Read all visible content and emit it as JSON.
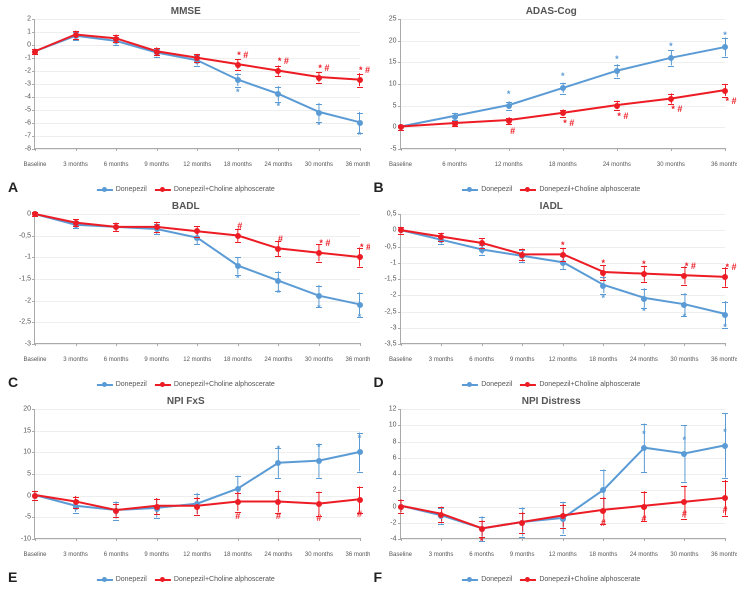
{
  "global": {
    "colors": {
      "donepezil": "#5B9BD5",
      "combo": "#ED1C24",
      "grid": "#eeeeee",
      "axis": "#aaaaaa",
      "text": "#555555",
      "bg": "#ffffff"
    },
    "legend": {
      "series1": "Donepezil",
      "series2": "Donepezil+Choline alphoscerate"
    },
    "line_width": 2,
    "marker_radius": 3,
    "errorbar_cap": 3
  },
  "panels": [
    {
      "letter": "A",
      "title": "MMSE",
      "ylim": [
        -8,
        2
      ],
      "yticks": [
        -8,
        -7,
        -6,
        -5,
        -4,
        -3,
        -2,
        -1,
        0,
        1,
        2
      ],
      "categories": [
        "Baseline",
        "3 months",
        "6 months",
        "9 months",
        "12 months",
        "18 months",
        "24 months",
        "30 months",
        "36 months"
      ],
      "donepezil": {
        "y": [
          -0.5,
          0.7,
          0.3,
          -0.6,
          -1.2,
          -2.7,
          -3.8,
          -5.2,
          -6.0
        ],
        "err": [
          0.2,
          0.3,
          0.3,
          0.3,
          0.4,
          0.5,
          0.6,
          0.7,
          0.8
        ]
      },
      "combo": {
        "y": [
          -0.5,
          0.8,
          0.5,
          -0.5,
          -1.0,
          -1.5,
          -2.0,
          -2.5,
          -2.7
        ],
        "err": [
          0.2,
          0.3,
          0.3,
          0.3,
          0.3,
          0.4,
          0.4,
          0.4,
          0.5
        ]
      },
      "marks": [
        {
          "series": "donepezil",
          "i": 5,
          "sym": "*",
          "off": [
            0,
            12
          ]
        },
        {
          "series": "donepezil",
          "i": 6,
          "sym": "*",
          "off": [
            0,
            12
          ]
        },
        {
          "series": "donepezil",
          "i": 7,
          "sym": "*",
          "off": [
            0,
            12
          ]
        },
        {
          "series": "donepezil",
          "i": 8,
          "sym": "*",
          "off": [
            0,
            12
          ]
        },
        {
          "series": "combo",
          "i": 5,
          "sym": "* #",
          "off": [
            5,
            -10
          ]
        },
        {
          "series": "combo",
          "i": 6,
          "sym": "* #",
          "off": [
            5,
            -10
          ]
        },
        {
          "series": "combo",
          "i": 7,
          "sym": "* #",
          "off": [
            5,
            -10
          ]
        },
        {
          "series": "combo",
          "i": 8,
          "sym": "* #",
          "off": [
            5,
            -10
          ]
        }
      ]
    },
    {
      "letter": "B",
      "title": "ADAS-Cog",
      "ylim": [
        -5,
        25
      ],
      "yticks": [
        -5,
        0,
        5,
        10,
        15,
        20,
        25
      ],
      "categories": [
        "Baseline",
        "6 months",
        "12 months",
        "18 months",
        "24 months",
        "30 months",
        "36 months"
      ],
      "donepezil": {
        "y": [
          0,
          2.5,
          5,
          9,
          13,
          16,
          18.5
        ],
        "err": [
          0.5,
          0.7,
          0.9,
          1.2,
          1.5,
          1.8,
          2.2
        ]
      },
      "combo": {
        "y": [
          0,
          0.8,
          1.5,
          3.2,
          5,
          6.5,
          8.5
        ],
        "err": [
          0.5,
          0.6,
          0.7,
          0.8,
          1,
          1.2,
          1.4
        ]
      },
      "marks": [
        {
          "series": "donepezil",
          "i": 2,
          "sym": "*",
          "off": [
            0,
            -12
          ]
        },
        {
          "series": "donepezil",
          "i": 3,
          "sym": "*",
          "off": [
            0,
            -12
          ]
        },
        {
          "series": "donepezil",
          "i": 4,
          "sym": "*",
          "off": [
            0,
            -12
          ]
        },
        {
          "series": "donepezil",
          "i": 5,
          "sym": "*",
          "off": [
            0,
            -12
          ]
        },
        {
          "series": "donepezil",
          "i": 6,
          "sym": "*",
          "off": [
            0,
            -12
          ]
        },
        {
          "series": "combo",
          "i": 2,
          "sym": "#",
          "off": [
            4,
            10
          ]
        },
        {
          "series": "combo",
          "i": 3,
          "sym": "* #",
          "off": [
            6,
            10
          ]
        },
        {
          "series": "combo",
          "i": 4,
          "sym": "* #",
          "off": [
            6,
            10
          ]
        },
        {
          "series": "combo",
          "i": 5,
          "sym": "* #",
          "off": [
            6,
            10
          ]
        },
        {
          "series": "combo",
          "i": 6,
          "sym": "* #",
          "off": [
            6,
            10
          ]
        }
      ]
    },
    {
      "letter": "C",
      "title": "BADL",
      "ylim": [
        -3,
        0
      ],
      "yticks": [
        -3,
        -2.5,
        -2,
        -1.5,
        -1,
        -0.5,
        0
      ],
      "ytick_labels": [
        "-3",
        "-2,5",
        "-2",
        "-1,5",
        "-1",
        "-0,5",
        "0"
      ],
      "categories": [
        "Baseline",
        "3 months",
        "6 months",
        "9 months",
        "12 months",
        "18 months",
        "24 months",
        "30 months",
        "36 months"
      ],
      "donepezil": {
        "y": [
          0,
          -0.25,
          -0.3,
          -0.35,
          -0.55,
          -1.2,
          -1.55,
          -1.9,
          -2.1
        ],
        "err": [
          0.05,
          0.08,
          0.1,
          0.12,
          0.15,
          0.2,
          0.22,
          0.25,
          0.28
        ]
      },
      "combo": {
        "y": [
          0,
          -0.2,
          -0.3,
          -0.3,
          -0.4,
          -0.5,
          -0.8,
          -0.9,
          -1.0
        ],
        "err": [
          0.05,
          0.08,
          0.1,
          0.12,
          0.12,
          0.15,
          0.18,
          0.2,
          0.22
        ]
      },
      "marks": [
        {
          "series": "donepezil",
          "i": 5,
          "sym": "*",
          "off": [
            0,
            12
          ]
        },
        {
          "series": "donepezil",
          "i": 6,
          "sym": "*",
          "off": [
            0,
            12
          ]
        },
        {
          "series": "donepezil",
          "i": 7,
          "sym": "*",
          "off": [
            0,
            12
          ]
        },
        {
          "series": "donepezil",
          "i": 8,
          "sym": "*",
          "off": [
            0,
            12
          ]
        },
        {
          "series": "combo",
          "i": 5,
          "sym": "#",
          "off": [
            2,
            -10
          ]
        },
        {
          "series": "combo",
          "i": 6,
          "sym": "#",
          "off": [
            2,
            -10
          ]
        },
        {
          "series": "combo",
          "i": 7,
          "sym": "* #",
          "off": [
            6,
            -10
          ]
        },
        {
          "series": "combo",
          "i": 8,
          "sym": "* #",
          "off": [
            6,
            -10
          ]
        }
      ]
    },
    {
      "letter": "D",
      "title": "IADL",
      "ylim": [
        -3.5,
        0.5
      ],
      "yticks": [
        -3.5,
        -3,
        -2.5,
        -2,
        -1.5,
        -1,
        -0.5,
        0,
        0.5
      ],
      "ytick_labels": [
        "-3,5",
        "-3",
        "-2,5",
        "-2",
        "-1,5",
        "-1",
        "-0,5",
        "0",
        "0,5"
      ],
      "categories": [
        "Baseline",
        "3 months",
        "6 months",
        "9 months",
        "12 months",
        "18 months",
        "24 months",
        "30 months",
        "36 months"
      ],
      "donepezil": {
        "y": [
          0,
          -0.3,
          -0.6,
          -0.8,
          -1.0,
          -1.7,
          -2.1,
          -2.3,
          -2.6
        ],
        "err": [
          0.1,
          0.12,
          0.15,
          0.18,
          0.2,
          0.25,
          0.3,
          0.35,
          0.4
        ]
      },
      "combo": {
        "y": [
          0,
          -0.2,
          -0.4,
          -0.75,
          -0.75,
          -1.3,
          -1.35,
          -1.4,
          -1.45
        ],
        "err": [
          0.1,
          0.12,
          0.15,
          0.18,
          0.2,
          0.22,
          0.25,
          0.28,
          0.3
        ]
      },
      "marks": [
        {
          "series": "donepezil",
          "i": 5,
          "sym": "*",
          "off": [
            0,
            12
          ]
        },
        {
          "series": "donepezil",
          "i": 6,
          "sym": "*",
          "off": [
            0,
            12
          ]
        },
        {
          "series": "donepezil",
          "i": 7,
          "sym": "*",
          "off": [
            0,
            12
          ]
        },
        {
          "series": "donepezil",
          "i": 8,
          "sym": "*",
          "off": [
            0,
            12
          ]
        },
        {
          "series": "combo",
          "i": 4,
          "sym": "*",
          "off": [
            0,
            -10
          ]
        },
        {
          "series": "combo",
          "i": 5,
          "sym": "*",
          "off": [
            0,
            -10
          ]
        },
        {
          "series": "combo",
          "i": 6,
          "sym": "*",
          "off": [
            0,
            -10
          ]
        },
        {
          "series": "combo",
          "i": 7,
          "sym": "* #",
          "off": [
            6,
            -10
          ]
        },
        {
          "series": "combo",
          "i": 8,
          "sym": "* #",
          "off": [
            6,
            -10
          ]
        }
      ]
    },
    {
      "letter": "E",
      "title": "NPI FxS",
      "ylim": [
        -10,
        20
      ],
      "yticks": [
        -10,
        -5,
        0,
        5,
        10,
        15,
        20
      ],
      "categories": [
        "Baseline",
        "3 months",
        "6 months",
        "9 months",
        "12 months",
        "18 months",
        "24 months",
        "30 months",
        "36 months"
      ],
      "donepezil": {
        "y": [
          0,
          -2.5,
          -3.5,
          -3,
          -2,
          1.5,
          7.5,
          8,
          10
        ],
        "err": [
          1,
          1.5,
          2,
          2.2,
          2.5,
          3,
          3.5,
          4,
          4.5
        ]
      },
      "combo": {
        "y": [
          0,
          -1.5,
          -3.5,
          -2.5,
          -2.5,
          -1.5,
          -1.5,
          -2,
          -1
        ],
        "err": [
          1,
          1.3,
          1.5,
          1.8,
          2,
          2.2,
          2.5,
          2.8,
          3
        ]
      },
      "marks": [
        {
          "series": "donepezil",
          "i": 6,
          "sym": "*",
          "off": [
            0,
            -14
          ]
        },
        {
          "series": "donepezil",
          "i": 7,
          "sym": "*",
          "off": [
            0,
            -14
          ]
        },
        {
          "series": "donepezil",
          "i": 8,
          "sym": "*",
          "off": [
            0,
            -14
          ]
        },
        {
          "series": "combo",
          "i": 5,
          "sym": "#",
          "off": [
            0,
            14
          ]
        },
        {
          "series": "combo",
          "i": 6,
          "sym": "#",
          "off": [
            0,
            14
          ]
        },
        {
          "series": "combo",
          "i": 7,
          "sym": "#",
          "off": [
            0,
            14
          ]
        },
        {
          "series": "combo",
          "i": 8,
          "sym": "#",
          "off": [
            0,
            14
          ]
        }
      ]
    },
    {
      "letter": "F",
      "title": "NPI Distress",
      "ylim": [
        -4,
        12
      ],
      "yticks": [
        -4,
        -2,
        0,
        2,
        4,
        6,
        8,
        10,
        12
      ],
      "categories": [
        "Baseline",
        "3 months",
        "6 months",
        "9 months",
        "12 months",
        "18 months",
        "24 months",
        "30 months",
        "36 months"
      ],
      "donepezil": {
        "y": [
          0,
          -1.2,
          -2.8,
          -2,
          -1.5,
          2,
          7.2,
          6.5,
          7.5
        ],
        "err": [
          0.8,
          1,
          1.5,
          1.8,
          2,
          2.5,
          3,
          3.5,
          4
        ]
      },
      "combo": {
        "y": [
          0,
          -1,
          -2.8,
          -2,
          -1.2,
          -0.5,
          0,
          0.5,
          1
        ],
        "err": [
          0.8,
          0.9,
          1,
          1.2,
          1.4,
          1.6,
          1.8,
          2,
          2.2
        ]
      },
      "marks": [
        {
          "series": "donepezil",
          "i": 6,
          "sym": "*",
          "off": [
            0,
            -14
          ]
        },
        {
          "series": "donepezil",
          "i": 7,
          "sym": "*",
          "off": [
            0,
            -14
          ]
        },
        {
          "series": "donepezil",
          "i": 8,
          "sym": "*",
          "off": [
            0,
            -14
          ]
        },
        {
          "series": "combo",
          "i": 2,
          "sym": "*",
          "off": [
            0,
            12
          ]
        },
        {
          "series": "combo",
          "i": 5,
          "sym": "#",
          "off": [
            0,
            12
          ]
        },
        {
          "series": "combo",
          "i": 6,
          "sym": "#",
          "off": [
            0,
            12
          ]
        },
        {
          "series": "combo",
          "i": 7,
          "sym": "#",
          "off": [
            0,
            12
          ]
        },
        {
          "series": "combo",
          "i": 8,
          "sym": "#",
          "off": [
            0,
            12
          ]
        }
      ]
    }
  ]
}
